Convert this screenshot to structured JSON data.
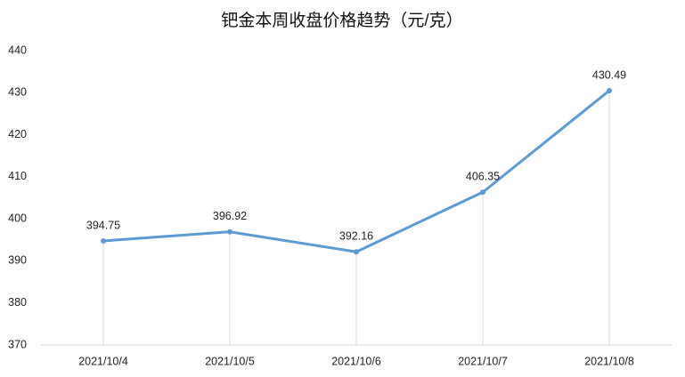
{
  "chart_data": {
    "type": "line",
    "title": "钯金本周收盘价格趋势（元/克）",
    "categories": [
      "2021/10/4",
      "2021/10/5",
      "2021/10/6",
      "2021/10/7",
      "2021/10/8"
    ],
    "series": [
      {
        "color": "#5b9bd5",
        "values": [
          394.75,
          396.92,
          392.16,
          406.35,
          430.49
        ]
      }
    ],
    "ylim": [
      370,
      440
    ],
    "yticks": [
      370,
      380,
      390,
      400,
      410,
      420,
      430,
      440
    ],
    "drop_lines": true
  }
}
